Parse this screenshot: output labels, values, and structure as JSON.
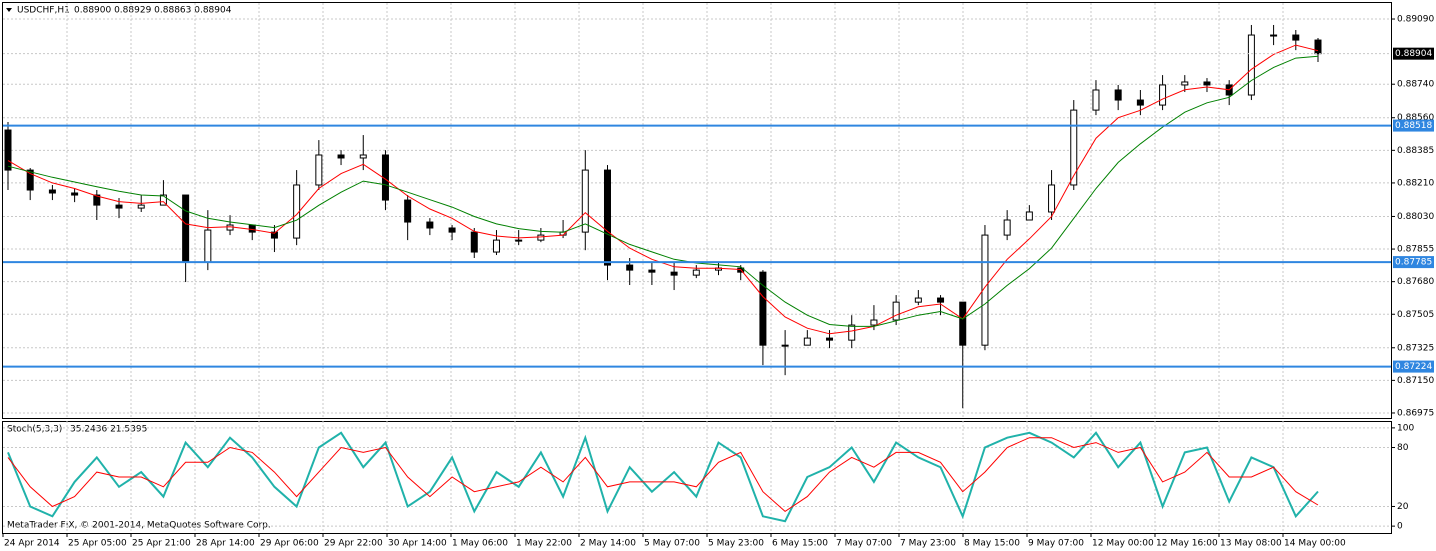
{
  "chart_data": [
    {
      "type": "candlestick",
      "title": "USDCHF,H1",
      "title_values": "0.88900 0.88929 0.88863 0.88904",
      "ylim": [
        0.86948,
        0.89176
      ],
      "yticks": [
        {
          "value": 0.8909,
          "label": "0.89090"
        },
        {
          "value": 0.8874,
          "label": "0.88740"
        },
        {
          "value": 0.8856,
          "label": "0.88560"
        },
        0.88385,
        {
          "value": 0.8821,
          "label": "0.88210"
        },
        {
          "value": 0.8803,
          "label": "0.88030"
        },
        0.87855,
        {
          "value": 0.8768,
          "label": "0.87680"
        },
        0.87505,
        0.87325,
        {
          "value": 0.8715,
          "label": "0.87150"
        },
        0.86975
      ],
      "grid": true,
      "open": [
        0.88494,
        0.88279,
        0.88172,
        0.88156,
        0.88145,
        0.88091,
        0.88075,
        0.88091,
        0.88145,
        0.87785,
        0.87957,
        0.87984,
        0.87946,
        0.87914,
        0.88199,
        0.8836,
        0.88344,
        0.8836,
        0.88118,
        0.88,
        0.87968,
        0.87946,
        0.87839,
        0.87903,
        0.87903,
        0.8793,
        0.87946,
        0.88279,
        0.87769,
        0.87742,
        0.87731,
        0.87715,
        0.87742,
        0.87753,
        0.87731,
        0.87339,
        0.87339,
        0.87377,
        0.87366,
        0.87447,
        0.87474,
        0.8757,
        0.87592,
        0.8757,
        0.87339,
        0.8793,
        0.88011,
        0.88054,
        0.88199,
        0.88601,
        0.88709,
        0.88655,
        0.88628,
        0.88736,
        0.88752,
        0.88736,
        0.88682,
        0.89004,
        0.89004,
        0.88977
      ],
      "high": [
        0.88537,
        0.8829,
        0.88199,
        0.88182,
        0.88172,
        0.88129,
        0.88145,
        0.88225,
        0.88145,
        0.88064,
        0.88037,
        0.87984,
        0.87984,
        0.88279,
        0.8844,
        0.88386,
        0.88467,
        0.88386,
        0.88145,
        0.88021,
        0.87984,
        0.87968,
        0.87957,
        0.87957,
        0.87968,
        0.88011,
        0.88386,
        0.88306,
        0.87807,
        0.87785,
        0.87785,
        0.87769,
        0.8778,
        0.87769,
        0.87742,
        0.8742,
        0.8742,
        0.8742,
        0.875,
        0.87554,
        0.87608,
        0.87635,
        0.87608,
        0.87554,
        0.87984,
        0.88064,
        0.88091,
        0.88279,
        0.88655,
        0.88762,
        0.88736,
        0.88709,
        0.88789,
        0.88789,
        0.88773,
        0.88762,
        0.89058,
        0.89058,
        0.89031,
        0.88988
      ],
      "low": [
        0.88172,
        0.88118,
        0.88118,
        0.88107,
        0.88011,
        0.88021,
        0.88054,
        0.88091,
        0.87678,
        0.87742,
        0.8793,
        0.87903,
        0.87839,
        0.87876,
        0.88172,
        0.88306,
        0.88279,
        0.88064,
        0.87903,
        0.8793,
        0.87903,
        0.87807,
        0.87823,
        0.87876,
        0.87892,
        0.87914,
        0.87849,
        0.87688,
        0.87662,
        0.87662,
        0.87635,
        0.87699,
        0.87715,
        0.87688,
        0.87232,
        0.87178,
        0.87339,
        0.87323,
        0.87323,
        0.8742,
        0.87447,
        0.87554,
        0.875,
        0.87001,
        0.87312,
        0.87903,
        0.88011,
        0.88011,
        0.88172,
        0.88574,
        0.88601,
        0.88574,
        0.88601,
        0.88698,
        0.88698,
        0.88628,
        0.88655,
        0.8895,
        0.88923,
        0.88859
      ],
      "close": [
        0.88279,
        0.88172,
        0.88156,
        0.88145,
        0.88091,
        0.88075,
        0.88091,
        0.88145,
        0.87785,
        0.87957,
        0.87984,
        0.87946,
        0.87914,
        0.88199,
        0.8836,
        0.88344,
        0.8836,
        0.88118,
        0.88,
        0.87968,
        0.87946,
        0.87839,
        0.87903,
        0.87903,
        0.8793,
        0.87946,
        0.88279,
        0.87769,
        0.87742,
        0.87731,
        0.87715,
        0.87742,
        0.87753,
        0.87731,
        0.87339,
        0.87339,
        0.87377,
        0.87366,
        0.87447,
        0.87474,
        0.8757,
        0.87592,
        0.8757,
        0.87339,
        0.8793,
        0.88011,
        0.88054,
        0.88199,
        0.88601,
        0.88709,
        0.88655,
        0.88628,
        0.88736,
        0.88752,
        0.88736,
        0.88682,
        0.89004,
        0.89004,
        0.88977,
        0.88904
      ],
      "series": [
        {
          "color": "#ff0000",
          "values": [
            0.8833,
            0.8826,
            0.8821,
            0.8818,
            0.8814,
            0.8811,
            0.881,
            0.8811,
            0.8799,
            0.8797,
            0.87975,
            0.8796,
            0.8794,
            0.8804,
            0.8818,
            0.8826,
            0.8831,
            0.8823,
            0.8814,
            0.8807,
            0.8802,
            0.8795,
            0.87925,
            0.87915,
            0.8792,
            0.8793,
            0.8805,
            0.8795,
            0.8786,
            0.878,
            0.8776,
            0.87752,
            0.87752,
            0.87745,
            0.876,
            0.8749,
            0.8743,
            0.874,
            0.87415,
            0.8744,
            0.875,
            0.87545,
            0.8756,
            0.8748,
            0.8765,
            0.878,
            0.8791,
            0.8803,
            0.8825,
            0.8845,
            0.8856,
            0.886,
            0.8866,
            0.8871,
            0.88725,
            0.8871,
            0.8882,
            0.889,
            0.8895,
            0.8892
          ]
        },
        {
          "color": "#008000",
          "values": [
            0.883,
            0.8827,
            0.8824,
            0.88215,
            0.8819,
            0.88165,
            0.88145,
            0.8814,
            0.8806,
            0.8802,
            0.88,
            0.87985,
            0.8797,
            0.8801,
            0.8809,
            0.8816,
            0.8822,
            0.882,
            0.8816,
            0.8812,
            0.8808,
            0.8803,
            0.8799,
            0.87965,
            0.8795,
            0.87945,
            0.8799,
            0.87935,
            0.8788,
            0.8784,
            0.878,
            0.8778,
            0.8777,
            0.8776,
            0.8766,
            0.8757,
            0.875,
            0.8745,
            0.8744,
            0.8744,
            0.8747,
            0.875,
            0.8752,
            0.8748,
            0.8756,
            0.8766,
            0.8775,
            0.8786,
            0.8802,
            0.8818,
            0.8832,
            0.8842,
            0.8851,
            0.8859,
            0.8864,
            0.8867,
            0.8876,
            0.8883,
            0.8888,
            0.8889
          ]
        }
      ],
      "hlines": [
        0.88518,
        0.87785,
        0.87224
      ],
      "hline_color": "#2f86e0",
      "last_price": 0.88904
    },
    {
      "type": "line",
      "title": "Stoch(5,3,3)",
      "title_values": "35.2436 21.5395",
      "ylim": [
        -7,
        107
      ],
      "yticks": [
        100,
        80,
        20,
        0
      ],
      "grid": true,
      "series": [
        {
          "color": "#20b2aa",
          "values": [
            75,
            20,
            10,
            45,
            70,
            40,
            55,
            30,
            85,
            60,
            90,
            70,
            40,
            20,
            80,
            95,
            60,
            85,
            20,
            35,
            70,
            15,
            55,
            40,
            75,
            30,
            90,
            15,
            60,
            35,
            55,
            30,
            85,
            70,
            10,
            5,
            50,
            60,
            80,
            45,
            85,
            70,
            60,
            10,
            80,
            90,
            95,
            85,
            70,
            95,
            60,
            85,
            20,
            75,
            80,
            25,
            70,
            60,
            10,
            35.2436
          ]
        },
        {
          "color": "#ff0000",
          "values": [
            70,
            40,
            20,
            30,
            55,
            50,
            50,
            40,
            65,
            65,
            80,
            75,
            55,
            30,
            55,
            80,
            75,
            80,
            50,
            30,
            50,
            35,
            40,
            45,
            60,
            45,
            70,
            40,
            45,
            45,
            45,
            40,
            65,
            75,
            35,
            15,
            30,
            55,
            70,
            60,
            75,
            75,
            65,
            35,
            55,
            80,
            90,
            90,
            80,
            85,
            75,
            80,
            45,
            55,
            75,
            50,
            50,
            60,
            35,
            21.5395
          ]
        }
      ],
      "x_labels": [
        "24 Apr 2014",
        "25 Apr 05:00",
        "25 Apr 21:00",
        "28 Apr 14:00",
        "29 Apr 06:00",
        "29 Apr 22:00",
        "30 Apr 14:00",
        "1 May 06:00",
        "1 May 22:00",
        "2 May 14:00",
        "5 May 07:00",
        "5 May 23:00",
        "6 May 15:00",
        "7 May 07:00",
        "7 May 23:00",
        "8 May 15:00",
        "9 May 07:00",
        "12 May 00:00",
        "12 May 16:00",
        "13 May 08:00",
        "14 May 00:00"
      ],
      "footer": "MetaTrader FIX, © 2001-2014, MetaQuotes Software Corp."
    }
  ]
}
